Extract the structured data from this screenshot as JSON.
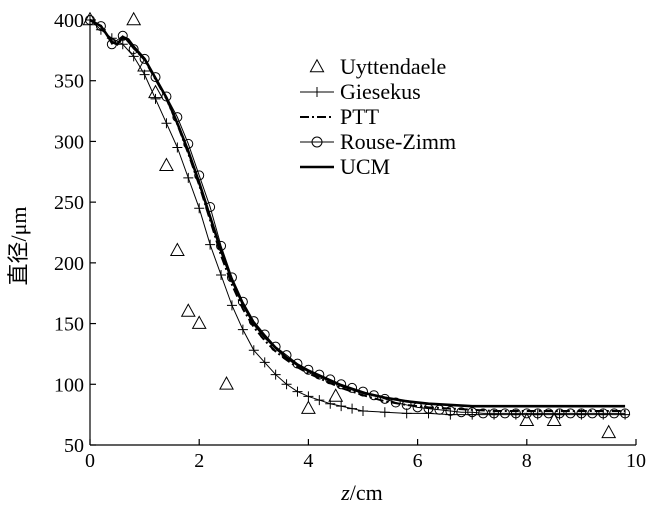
{
  "chart_data": {
    "type": "line",
    "title": "",
    "xlabel": {
      "italic": "z",
      "rest": "/cm"
    },
    "ylabel": "直径/μm",
    "xlim": [
      0,
      10
    ],
    "ylim": [
      50,
      400
    ],
    "xticks": [
      0,
      2,
      4,
      6,
      8,
      10
    ],
    "yticks": [
      50,
      100,
      150,
      200,
      250,
      300,
      350,
      400
    ],
    "grid": false,
    "legend_position": "top-right",
    "series": [
      {
        "name": "Uyttendaele",
        "style": "scatter-triangle",
        "x": [
          0.0,
          0.8,
          1.0,
          1.2,
          1.4,
          1.6,
          1.8,
          2.0,
          2.5,
          4.0,
          4.5,
          8.0,
          8.5,
          9.5
        ],
        "y": [
          400,
          400,
          362,
          340,
          280,
          210,
          160,
          150,
          100,
          80,
          90,
          70,
          70,
          60
        ]
      },
      {
        "name": "Giesekus",
        "style": "line-plus",
        "x": [
          0.0,
          0.2,
          0.4,
          0.6,
          0.8,
          1.0,
          1.2,
          1.4,
          1.6,
          1.8,
          2.0,
          2.2,
          2.4,
          2.6,
          2.8,
          3.0,
          3.2,
          3.4,
          3.6,
          3.8,
          4.0,
          4.2,
          4.4,
          4.6,
          4.8,
          5.0,
          5.4,
          5.8,
          6.2,
          6.6,
          7.0,
          7.4,
          7.8,
          8.2,
          8.6,
          9.0,
          9.4,
          9.8
        ],
        "y": [
          400,
          392,
          385,
          380,
          370,
          355,
          335,
          315,
          295,
          270,
          245,
          215,
          190,
          165,
          145,
          128,
          118,
          108,
          100,
          94,
          90,
          87,
          84,
          82,
          80,
          78,
          77,
          76,
          76,
          75,
          75,
          75,
          75,
          75,
          75,
          75,
          75,
          75
        ]
      },
      {
        "name": "PTT",
        "style": "dash-dot",
        "x": [
          0.0,
          0.2,
          0.4,
          0.5,
          0.6,
          0.7,
          0.8,
          1.0,
          1.2,
          1.4,
          1.6,
          1.8,
          2.0,
          2.2,
          2.4,
          2.6,
          2.8,
          3.0,
          3.2,
          3.4,
          3.6,
          3.8,
          4.0,
          4.2,
          4.4,
          4.6,
          4.8,
          5.0,
          5.4,
          5.8,
          6.2,
          6.6,
          7.0,
          7.4,
          7.8,
          8.2,
          8.6,
          9.0,
          9.4,
          9.8
        ],
        "y": [
          400,
          395,
          382,
          380,
          385,
          383,
          377,
          367,
          351,
          335,
          314,
          290,
          264,
          235,
          206,
          182,
          162,
          147,
          136,
          127,
          120,
          114,
          109,
          105,
          101,
          97,
          94,
          91,
          86,
          83,
          81,
          80,
          79,
          78,
          78,
          78,
          78,
          78,
          78,
          78
        ]
      },
      {
        "name": "Rouse-Zimm",
        "style": "line-circle",
        "x": [
          0.0,
          0.2,
          0.4,
          0.6,
          0.8,
          1.0,
          1.2,
          1.4,
          1.6,
          1.8,
          2.0,
          2.2,
          2.4,
          2.6,
          2.8,
          3.0,
          3.2,
          3.4,
          3.6,
          3.8,
          4.0,
          4.2,
          4.4,
          4.6,
          4.8,
          5.0,
          5.2,
          5.4,
          5.6,
          5.8,
          6.0,
          6.2,
          6.4,
          6.6,
          6.8,
          7.0,
          7.2,
          7.4,
          7.6,
          7.8,
          8.0,
          8.2,
          8.4,
          8.6,
          8.8,
          9.0,
          9.2,
          9.4,
          9.6,
          9.8
        ],
        "y": [
          400,
          395,
          380,
          387,
          376,
          368,
          353,
          337,
          320,
          298,
          272,
          246,
          214,
          188,
          168,
          152,
          141,
          131,
          124,
          117,
          112,
          108,
          104,
          100,
          97,
          94,
          91,
          88,
          85,
          83,
          81,
          80,
          79,
          78,
          77,
          77,
          76,
          76,
          76,
          76,
          76,
          76,
          76,
          76,
          76,
          76,
          76,
          76,
          76,
          76
        ]
      },
      {
        "name": "UCM",
        "style": "thick-line",
        "x": [
          0.0,
          0.2,
          0.4,
          0.5,
          0.6,
          0.7,
          0.8,
          1.0,
          1.2,
          1.4,
          1.6,
          1.8,
          2.0,
          2.2,
          2.4,
          2.6,
          2.8,
          3.0,
          3.2,
          3.4,
          3.6,
          3.8,
          4.0,
          4.2,
          4.4,
          4.6,
          4.8,
          5.0,
          5.4,
          5.8,
          6.2,
          6.6,
          7.0,
          7.4,
          7.8,
          8.2,
          8.6,
          9.0,
          9.4,
          9.8
        ],
        "y": [
          400,
          395,
          382,
          380,
          386,
          384,
          378,
          368,
          352,
          336,
          315,
          292,
          266,
          238,
          210,
          186,
          166,
          150,
          139,
          130,
          122,
          116,
          111,
          107,
          103,
          99,
          96,
          93,
          89,
          86,
          84,
          83,
          82,
          82,
          82,
          82,
          82,
          82,
          82,
          82
        ]
      }
    ]
  }
}
